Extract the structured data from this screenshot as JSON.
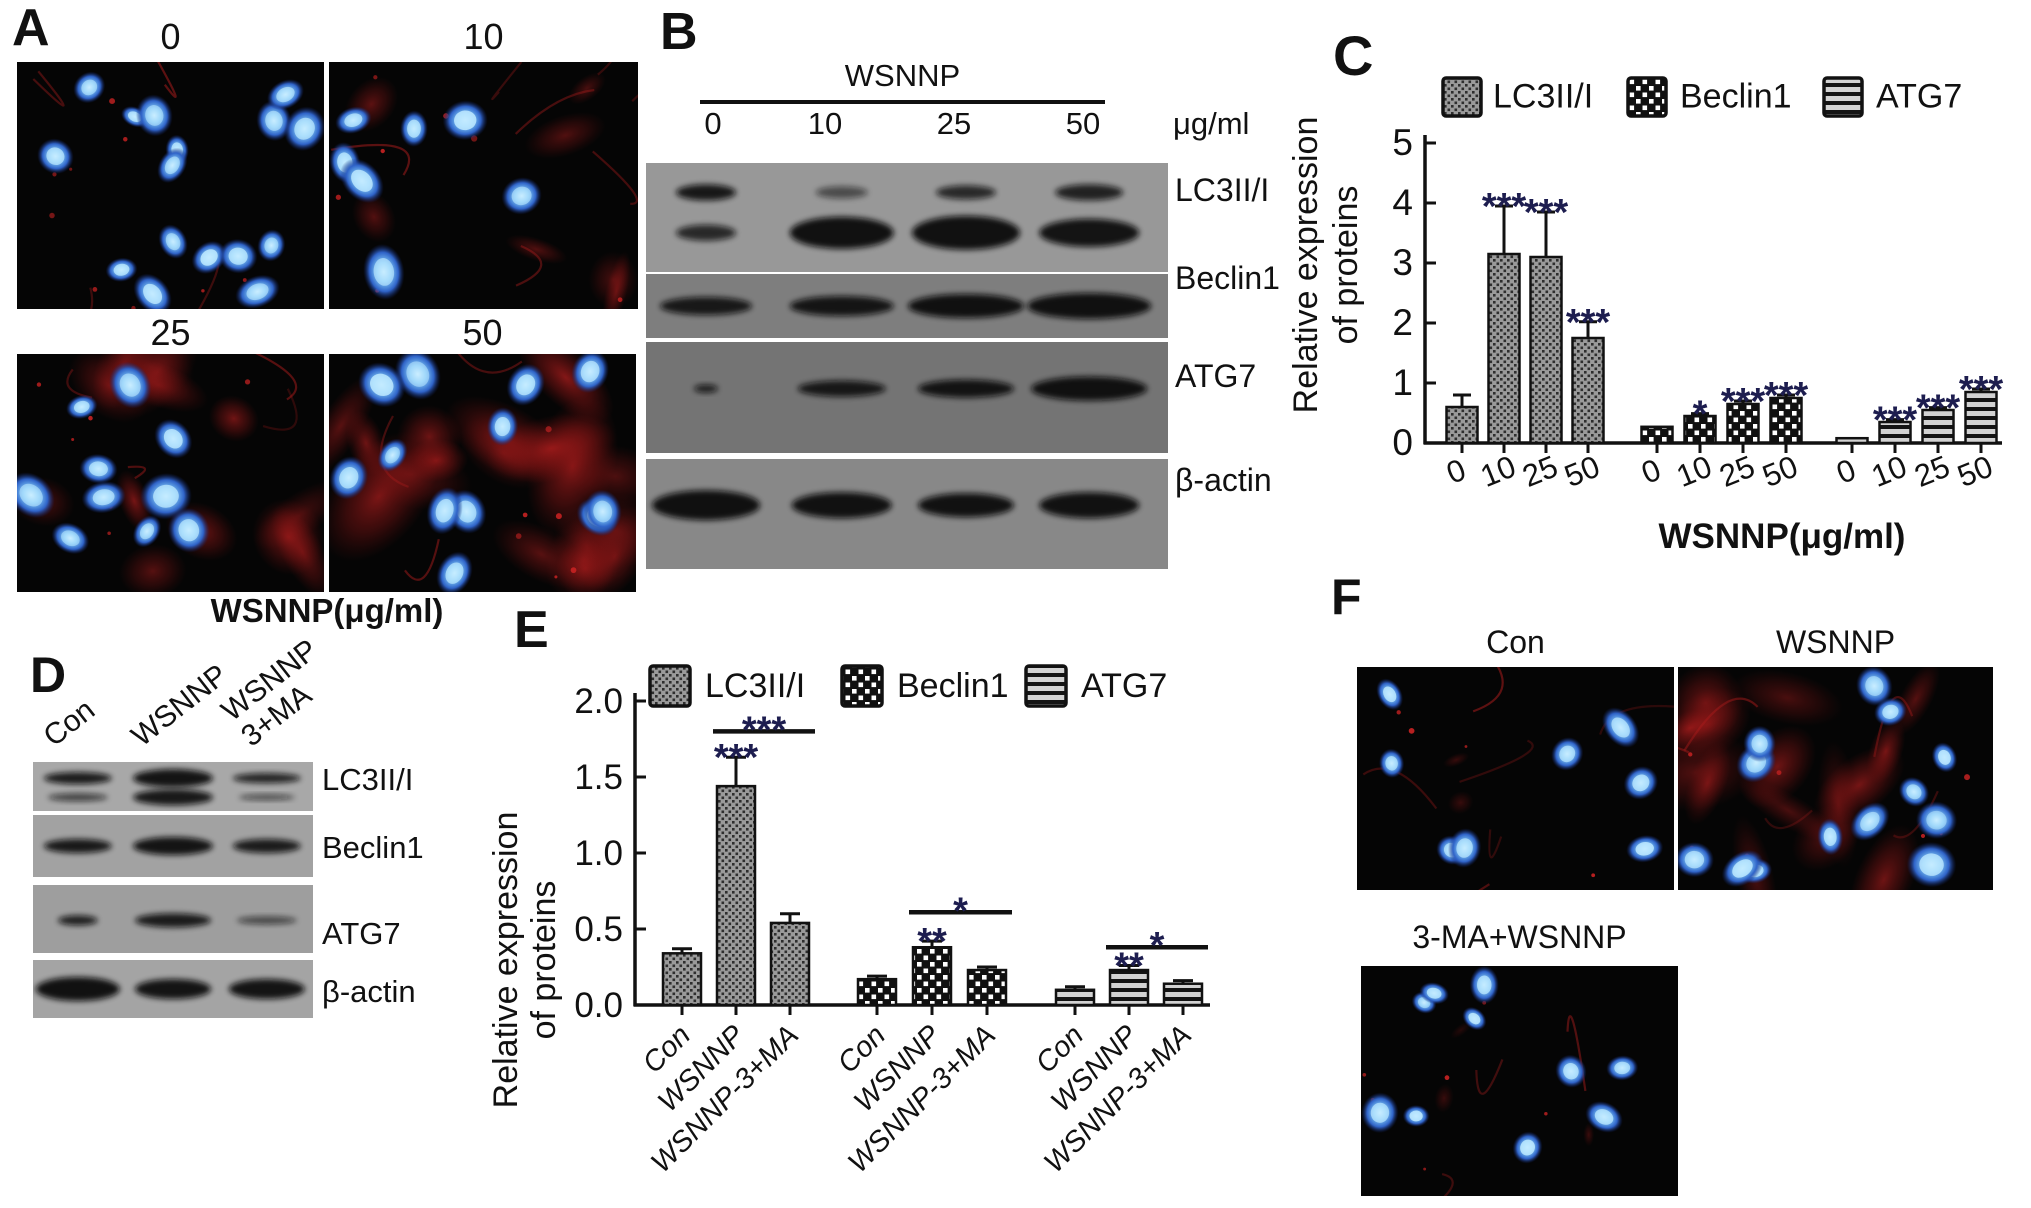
{
  "panels": {
    "A": {
      "label": "A",
      "column_labels": [
        "0",
        "10",
        "25",
        "50"
      ],
      "caption": "WSNNP(μg/ml)"
    },
    "B": {
      "label": "B",
      "group_header": "WSNNP",
      "lane_labels": [
        "0",
        "10",
        "25",
        "50"
      ],
      "unit_label": "μg/ml",
      "protein_labels": [
        "LC3II/I",
        "Beclin1",
        "ATG7",
        "β-actin"
      ]
    },
    "C": {
      "label": "C"
    },
    "D": {
      "label": "D",
      "lane_labels": [
        "Con",
        "WSNNP",
        "WSNNP\n3+MA"
      ],
      "protein_labels": [
        "LC3II/I",
        "Beclin1",
        "ATG7",
        "β-actin"
      ]
    },
    "E": {
      "label": "E"
    },
    "F": {
      "label": "F",
      "image_labels": [
        "Con",
        "WSNNP",
        "3-MA+WSNNP"
      ]
    }
  },
  "chart_data": [
    {
      "panel": "C",
      "type": "bar",
      "title": "",
      "ylabel_lines": [
        "Relative expression",
        "of proteins"
      ],
      "xlabel": "WSNNP(μg/ml)",
      "ylim": [
        0,
        5
      ],
      "yticks": [
        "0",
        "1",
        "2",
        "3",
        "4",
        "5"
      ],
      "grid": false,
      "legend_position": "top",
      "legend": [
        "LC3II/I",
        "Beclin1",
        "ATG7"
      ],
      "categories": [
        "0",
        "10",
        "25",
        "50"
      ],
      "series": [
        {
          "name": "LC3II/I",
          "pattern": "fine-check",
          "values": [
            0.6,
            3.15,
            3.1,
            1.75
          ],
          "errors": [
            0.2,
            0.8,
            0.75,
            0.27
          ],
          "sig": [
            "",
            "***",
            "***",
            "***"
          ]
        },
        {
          "name": "Beclin1",
          "pattern": "checker",
          "values": [
            0.27,
            0.45,
            0.65,
            0.75
          ],
          "errors": [
            0,
            0.04,
            0.05,
            0.05
          ],
          "sig": [
            "",
            "*",
            "***",
            "***"
          ]
        },
        {
          "name": "ATG7",
          "pattern": "hlines",
          "values": [
            0.08,
            0.35,
            0.55,
            0.85
          ],
          "errors": [
            0,
            0.04,
            0.04,
            0.05
          ],
          "sig": [
            "",
            "***",
            "***",
            "***"
          ]
        }
      ]
    },
    {
      "panel": "E",
      "type": "bar",
      "title": "",
      "ylabel_lines": [
        "Relative expression",
        "of proteins"
      ],
      "xlabel": "",
      "ylim": [
        0,
        2
      ],
      "yticks": [
        "0.0",
        "0.5",
        "1.0",
        "1.5",
        "2.0"
      ],
      "grid": false,
      "legend_position": "top",
      "legend": [
        "LC3II/I",
        "Beclin1",
        "ATG7"
      ],
      "categories": [
        "Con",
        "WSNNP",
        "WSNNP-3+MA"
      ],
      "series": [
        {
          "name": "LC3II/I",
          "pattern": "fine-check",
          "values": [
            0.34,
            1.44,
            0.54
          ],
          "errors": [
            0.03,
            0.19,
            0.06
          ],
          "sig": [
            "",
            "***",
            ""
          ],
          "comparison": {
            "from": 1,
            "to": 2,
            "label": "***",
            "y": 1.8
          }
        },
        {
          "name": "Beclin1",
          "pattern": "checker",
          "values": [
            0.17,
            0.38,
            0.23
          ],
          "errors": [
            0.02,
            0.04,
            0.02
          ],
          "sig": [
            "",
            "**",
            ""
          ],
          "comparison": {
            "from": 1,
            "to": 2,
            "label": "*",
            "y": 0.61
          }
        },
        {
          "name": "ATG7",
          "pattern": "hlines",
          "values": [
            0.1,
            0.23,
            0.14
          ],
          "errors": [
            0.02,
            0.03,
            0.02
          ],
          "sig": [
            "",
            "**",
            ""
          ],
          "comparison": {
            "from": 1,
            "to": 2,
            "label": "*",
            "y": 0.38
          }
        }
      ]
    }
  ],
  "colors": {
    "axis": "#111111",
    "star": "#1d1d4f",
    "nucleus_blue": "#5aa7e8",
    "stain_red": "#a81616"
  }
}
